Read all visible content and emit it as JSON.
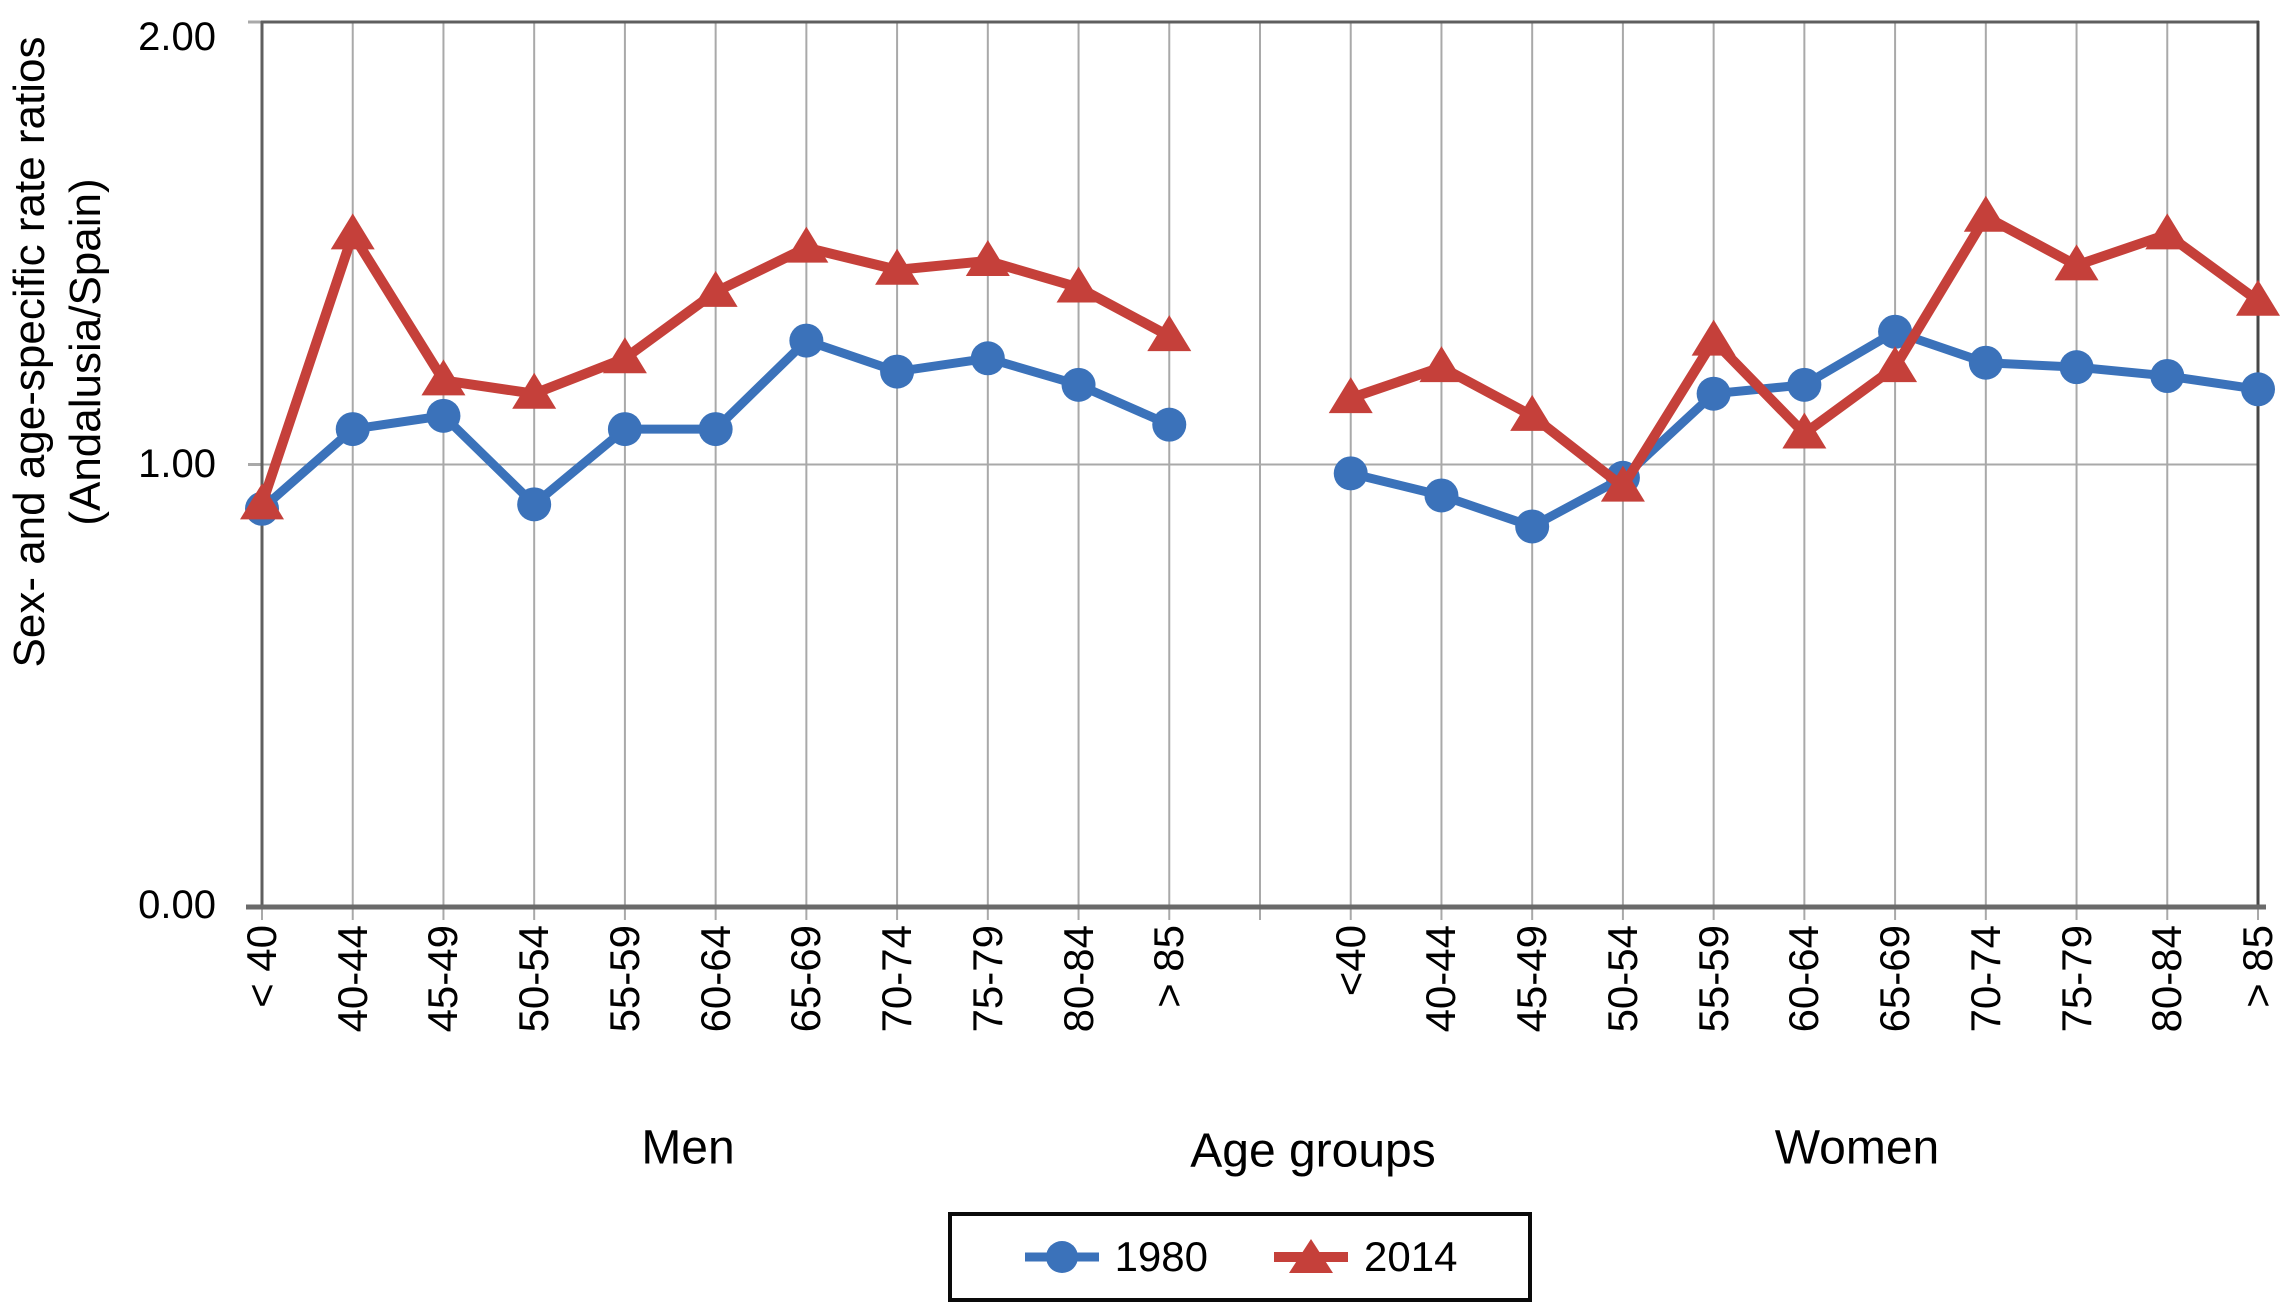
{
  "y_axis": {
    "title_line1": "Sex- and age-specific rate ratios",
    "title_line2": "(Andalusia/Spain)",
    "ticks": [
      "2.00",
      "1.00",
      "0.00"
    ]
  },
  "x_axis": {
    "men_label": "Men",
    "center_label": "Age groups",
    "women_label": "Women"
  },
  "legend": {
    "items": [
      {
        "label": "1980",
        "marker": "circle",
        "color": "#3B72BA"
      },
      {
        "label": "2014",
        "marker": "triangle",
        "color": "#C5403A"
      }
    ]
  },
  "colors": {
    "series_1980": "#3B72BA",
    "series_2014": "#C5403A",
    "gridline": "#A9A9A9",
    "axis": "#5F5F5F",
    "axis_bottom": "#6A6A6A",
    "axis_right": "#474747"
  },
  "chart_data": {
    "type": "line",
    "title": "",
    "xlabel": "Age groups",
    "ylabel": "Sex- and age-specific rate ratios (Andalusia/Spain)",
    "ylim": [
      0.0,
      2.0
    ],
    "yticks": [
      2.0,
      1.0,
      0.0
    ],
    "grid": "vertical-per-category, horizontal at 1.00",
    "legend_position": "bottom-center",
    "sections": [
      {
        "name": "Men",
        "categories": [
          "< 40",
          "40-44",
          "45-49",
          "50-54",
          "55-59",
          "60-64",
          "65-69",
          "70-74",
          "75-79",
          "80-84",
          "> 85"
        ],
        "series": [
          {
            "name": "1980",
            "values": [
              0.9,
              1.08,
              1.11,
              0.91,
              1.08,
              1.08,
              1.28,
              1.21,
              1.24,
              1.18,
              1.09
            ]
          },
          {
            "name": "2014",
            "values": [
              0.91,
              1.52,
              1.19,
              1.16,
              1.24,
              1.39,
              1.49,
              1.44,
              1.46,
              1.4,
              1.29
            ]
          }
        ]
      },
      {
        "name": "Women",
        "categories": [
          "<40",
          "40-44",
          "45-49",
          "50-54",
          "55-59",
          "60-64",
          "65-69",
          "70-74",
          "75-79",
          "80-84",
          "> 85"
        ],
        "series": [
          {
            "name": "1980",
            "values": [
              0.98,
              0.93,
              0.86,
              0.97,
              1.16,
              1.18,
              1.3,
              1.23,
              1.22,
              1.2,
              1.17
            ]
          },
          {
            "name": "2014",
            "values": [
              1.15,
              1.22,
              1.11,
              0.95,
              1.28,
              1.07,
              1.22,
              1.56,
              1.45,
              1.52,
              1.37
            ]
          }
        ]
      }
    ]
  }
}
